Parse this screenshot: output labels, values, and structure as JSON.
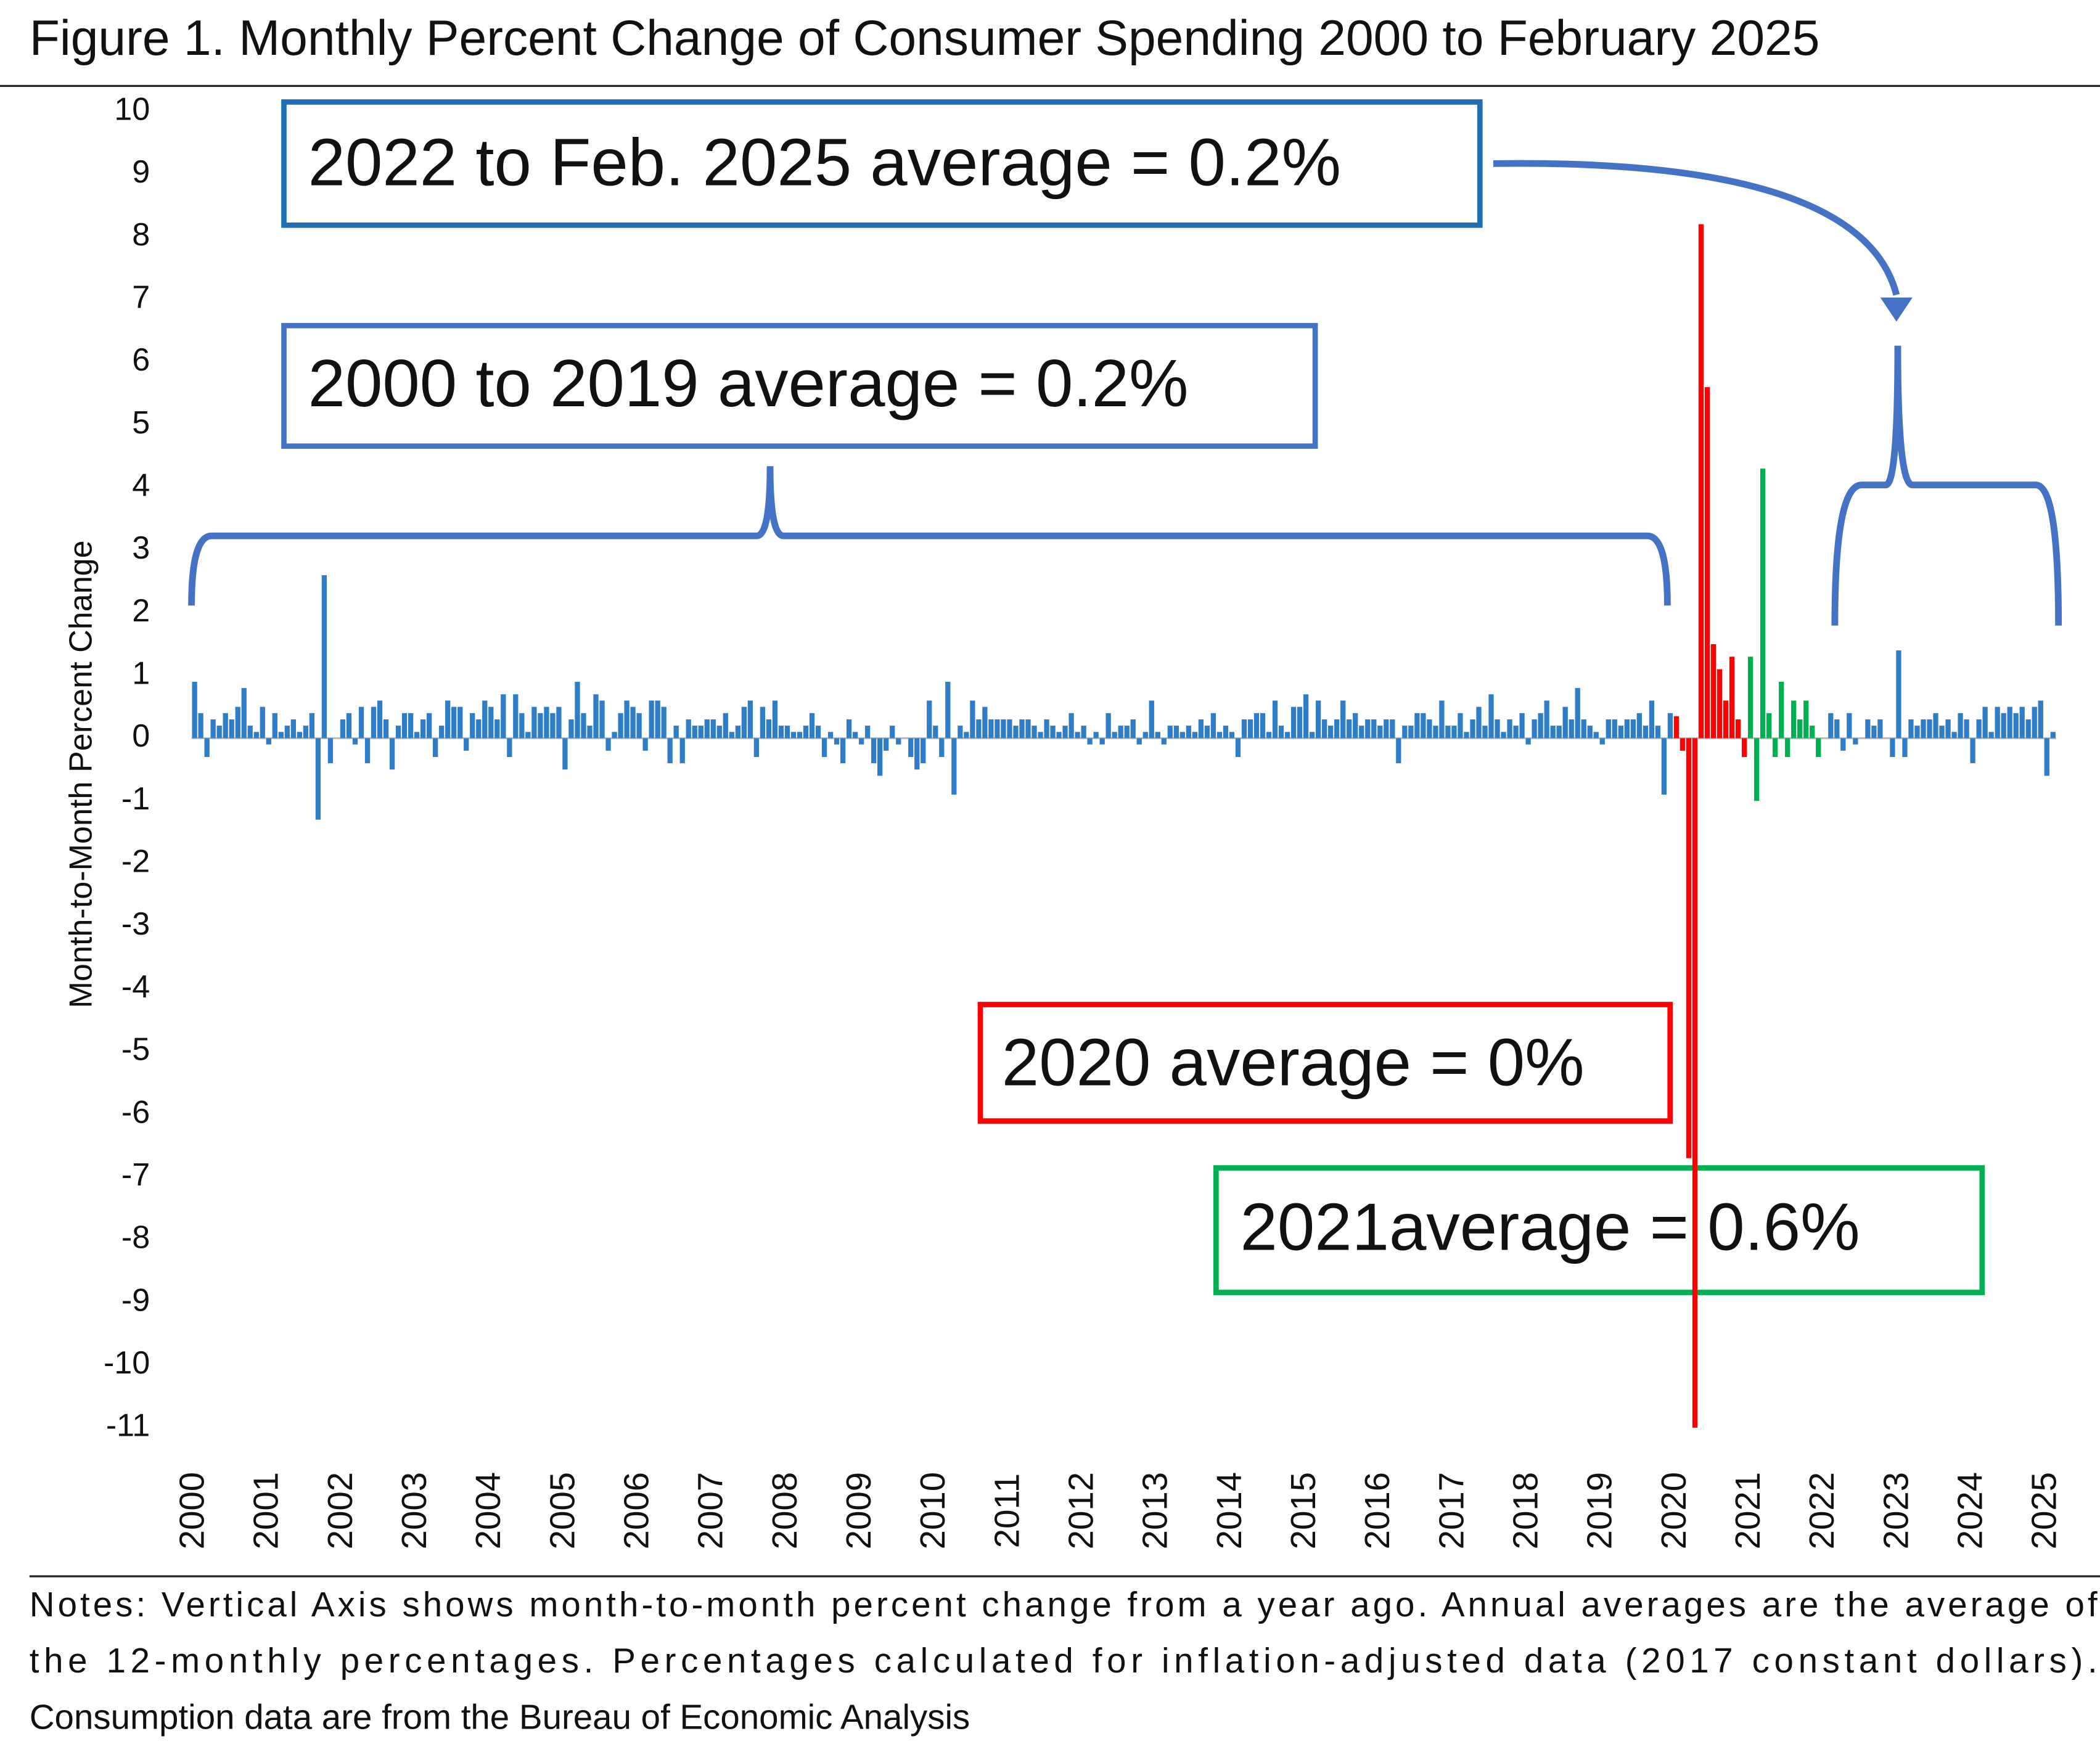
{
  "chart_data": {
    "type": "bar",
    "title": "Figure 1. Monthly Percent Change of Consumer Spending 2000 to February 2025",
    "y_label": "Month-to-Month Percent Change",
    "notes": [
      "Notes: Vertical Axis shows month-to-month percent change from a year ago. Annual averages are the average of",
      "the 12-monthly percentages.  Percentages calculated for inflation-adjusted data (2017 constant dollars).",
      "Consumption data are from the Bureau of Economic Analysis"
    ],
    "annotations": [
      {
        "text": "2022 to Feb. 2025 average = 0.2%",
        "color": "#1f6fb5"
      },
      {
        "text": "2000 to 2019 average = 0.2%",
        "color": "#4472c4"
      },
      {
        "text": "2020 average = 0%",
        "color": "#ff0000"
      },
      {
        "text": "2021average = 0.6%",
        "color": "#00b050"
      }
    ],
    "ylim": [
      -11,
      10
    ],
    "yticks": [
      -11,
      -10,
      -9,
      -8,
      -7,
      -6,
      -5,
      -4,
      -3,
      -2,
      -1,
      0,
      1,
      2,
      3,
      4,
      5,
      6,
      7,
      8,
      9,
      10
    ],
    "categories": [
      "2000",
      null,
      null,
      null,
      null,
      null,
      null,
      null,
      null,
      null,
      null,
      null,
      "2001",
      null,
      null,
      null,
      null,
      null,
      null,
      null,
      null,
      null,
      null,
      null,
      "2002",
      null,
      null,
      null,
      null,
      null,
      null,
      null,
      null,
      null,
      null,
      null,
      "2003",
      null,
      null,
      null,
      null,
      null,
      null,
      null,
      null,
      null,
      null,
      null,
      "2004",
      null,
      null,
      null,
      null,
      null,
      null,
      null,
      null,
      null,
      null,
      null,
      "2005",
      null,
      null,
      null,
      null,
      null,
      null,
      null,
      null,
      null,
      null,
      null,
      "2006",
      null,
      null,
      null,
      null,
      null,
      null,
      null,
      null,
      null,
      null,
      null,
      "2007",
      null,
      null,
      null,
      null,
      null,
      null,
      null,
      null,
      null,
      null,
      null,
      "2008",
      null,
      null,
      null,
      null,
      null,
      null,
      null,
      null,
      null,
      null,
      null,
      "2009",
      null,
      null,
      null,
      null,
      null,
      null,
      null,
      null,
      null,
      null,
      null,
      "2010",
      null,
      null,
      null,
      null,
      null,
      null,
      null,
      null,
      null,
      null,
      null,
      "2011",
      null,
      null,
      null,
      null,
      null,
      null,
      null,
      null,
      null,
      null,
      null,
      "2012",
      null,
      null,
      null,
      null,
      null,
      null,
      null,
      null,
      null,
      null,
      null,
      "2013",
      null,
      null,
      null,
      null,
      null,
      null,
      null,
      null,
      null,
      null,
      null,
      "2014",
      null,
      null,
      null,
      null,
      null,
      null,
      null,
      null,
      null,
      null,
      null,
      "2015",
      null,
      null,
      null,
      null,
      null,
      null,
      null,
      null,
      null,
      null,
      null,
      "2016",
      null,
      null,
      null,
      null,
      null,
      null,
      null,
      null,
      null,
      null,
      null,
      "2017",
      null,
      null,
      null,
      null,
      null,
      null,
      null,
      null,
      null,
      null,
      null,
      "2018",
      null,
      null,
      null,
      null,
      null,
      null,
      null,
      null,
      null,
      null,
      null,
      "2019",
      null,
      null,
      null,
      null,
      null,
      null,
      null,
      null,
      null,
      null,
      null,
      "2020",
      null,
      null,
      null,
      null,
      null,
      null,
      null,
      null,
      null,
      null,
      null,
      "2021",
      null,
      null,
      null,
      null,
      null,
      null,
      null,
      null,
      null,
      null,
      null,
      "2022",
      null,
      null,
      null,
      null,
      null,
      null,
      null,
      null,
      null,
      null,
      null,
      "2023",
      null,
      null,
      null,
      null,
      null,
      null,
      null,
      null,
      null,
      null,
      null,
      "2024",
      null,
      null,
      null,
      null,
      null,
      null,
      null,
      null,
      null,
      null,
      null,
      "2025",
      null
    ],
    "series": [
      {
        "color": "#2e7dc8",
        "values": [
          0.9,
          0.4,
          -0.3,
          0.3,
          0.2,
          0.4,
          0.3,
          0.5,
          0.8,
          0.2,
          0.1,
          0.5,
          -0.1,
          0.4,
          0.1,
          0.2,
          0.3,
          0.1,
          0.2,
          0.4,
          -1.3,
          2.6,
          -0.4,
          0.0,
          0.3,
          0.4,
          -0.1,
          0.5,
          -0.4,
          0.5,
          0.6,
          0.3,
          -0.5,
          0.2,
          0.4,
          0.4,
          0.1,
          0.3,
          0.4,
          -0.3,
          0.2,
          0.6,
          0.5,
          0.5,
          -0.2,
          0.4,
          0.3,
          0.6,
          0.5,
          0.3,
          0.7,
          -0.3,
          0.7,
          0.4,
          0.1,
          0.5,
          0.4,
          0.5,
          0.4,
          0.5,
          -0.5,
          0.3,
          0.9,
          0.4,
          0.2,
          0.7,
          0.6,
          -0.2,
          0.1,
          0.4,
          0.6,
          0.5,
          0.4,
          -0.2,
          0.6,
          0.6,
          0.5,
          -0.4,
          0.2,
          -0.4,
          0.3,
          0.2,
          0.2,
          0.3,
          0.3,
          0.2,
          0.4,
          0.1,
          0.2,
          0.5,
          0.6,
          -0.3,
          0.5,
          0.3,
          0.6,
          0.2,
          0.2,
          0.1,
          0.1,
          0.2,
          0.4,
          0.2,
          -0.3,
          0.1,
          -0.1,
          -0.4,
          0.3,
          0.1,
          -0.1,
          0.2,
          -0.4,
          -0.6,
          -0.2,
          0.2,
          -0.1,
          0.0,
          -0.3,
          -0.5,
          -0.4,
          0.6,
          0.2,
          -0.3,
          0.9,
          -0.9,
          0.2,
          0.1,
          0.6,
          0.3,
          0.5,
          0.3,
          0.3,
          0.3,
          0.3,
          0.2,
          0.3,
          0.3,
          0.2,
          0.1,
          0.3,
          0.2,
          0.1,
          0.2,
          0.4,
          0.1,
          0.2,
          -0.1,
          0.1,
          -0.1,
          0.4,
          0.1,
          0.2,
          0.2,
          0.3,
          -0.1,
          0.1,
          0.6,
          0.1,
          -0.1,
          0.2,
          0.2,
          0.1,
          0.2,
          0.1,
          0.3,
          0.2,
          0.4,
          0.1,
          0.2,
          0.1,
          -0.3,
          0.3,
          0.3,
          0.4,
          0.4,
          0.1,
          0.6,
          0.2,
          0.1,
          0.5,
          0.5,
          0.7,
          0.1,
          0.6,
          0.3,
          0.2,
          0.3,
          0.6,
          0.3,
          0.4,
          0.2,
          0.3,
          0.3,
          0.2,
          0.3,
          0.3,
          -0.4,
          0.2,
          0.2,
          0.4,
          0.4,
          0.3,
          0.2,
          0.6,
          0.2,
          0.2,
          0.4,
          0.1,
          0.3,
          0.5,
          0.2,
          0.7,
          0.3,
          0.1,
          0.3,
          0.2,
          0.4,
          -0.1,
          0.3,
          0.4,
          0.6,
          0.2,
          0.2,
          0.5,
          0.3,
          0.8,
          0.3,
          0.2,
          0.1,
          -0.1,
          0.3,
          0.3,
          0.2,
          0.3,
          0.3,
          0.4,
          0.2,
          0.6,
          0.2,
          -0.9,
          0.4,
          null,
          null,
          null,
          null,
          null,
          null,
          null,
          null,
          null,
          null,
          null,
          null,
          null,
          null,
          null,
          null,
          null,
          null,
          null,
          null,
          null,
          null,
          null,
          null,
          0.0,
          0.4,
          0.3,
          -0.2,
          0.4,
          -0.1,
          0.0,
          0.3,
          0.2,
          0.3,
          0.0,
          -0.3,
          1.4,
          -0.3,
          0.3,
          0.2,
          0.3,
          0.3,
          0.4,
          0.2,
          0.3,
          0.1,
          0.4,
          0.3,
          -0.4,
          0.3,
          0.5,
          0.1,
          0.5,
          0.4,
          0.5,
          0.4,
          0.5,
          0.3,
          0.5,
          0.6,
          -0.6,
          0.1
        ]
      },
      {
        "color": "#ff0000",
        "values": [
          null,
          null,
          null,
          null,
          null,
          null,
          null,
          null,
          null,
          null,
          null,
          null,
          null,
          null,
          null,
          null,
          null,
          null,
          null,
          null,
          null,
          null,
          null,
          null,
          null,
          null,
          null,
          null,
          null,
          null,
          null,
          null,
          null,
          null,
          null,
          null,
          null,
          null,
          null,
          null,
          null,
          null,
          null,
          null,
          null,
          null,
          null,
          null,
          null,
          null,
          null,
          null,
          null,
          null,
          null,
          null,
          null,
          null,
          null,
          null,
          null,
          null,
          null,
          null,
          null,
          null,
          null,
          null,
          null,
          null,
          null,
          null,
          null,
          null,
          null,
          null,
          null,
          null,
          null,
          null,
          null,
          null,
          null,
          null,
          null,
          null,
          null,
          null,
          null,
          null,
          null,
          null,
          null,
          null,
          null,
          null,
          null,
          null,
          null,
          null,
          null,
          null,
          null,
          null,
          null,
          null,
          null,
          null,
          null,
          null,
          null,
          null,
          null,
          null,
          null,
          null,
          null,
          null,
          null,
          null,
          null,
          null,
          null,
          null,
          null,
          null,
          null,
          null,
          null,
          null,
          null,
          null,
          null,
          null,
          null,
          null,
          null,
          null,
          null,
          null,
          null,
          null,
          null,
          null,
          null,
          null,
          null,
          null,
          null,
          null,
          null,
          null,
          null,
          null,
          null,
          null,
          null,
          null,
          null,
          null,
          null,
          null,
          null,
          null,
          null,
          null,
          null,
          null,
          null,
          null,
          null,
          null,
          null,
          null,
          null,
          null,
          null,
          null,
          null,
          null,
          null,
          null,
          null,
          null,
          null,
          null,
          null,
          null,
          null,
          null,
          null,
          null,
          null,
          null,
          null,
          null,
          null,
          null,
          null,
          null,
          null,
          null,
          null,
          null,
          null,
          null,
          null,
          null,
          null,
          null,
          null,
          null,
          null,
          null,
          null,
          null,
          null,
          null,
          null,
          null,
          null,
          null,
          null,
          null,
          null,
          null,
          null,
          null,
          null,
          null,
          null,
          null,
          null,
          null,
          null,
          null,
          null,
          null,
          null,
          null,
          0.35,
          -0.2,
          -6.7,
          -11.0,
          8.2,
          5.6,
          1.5,
          1.1,
          0.6,
          1.3,
          0.3,
          -0.3,
          null,
          null,
          null,
          null,
          null,
          null,
          null,
          null,
          null,
          null,
          null,
          null,
          null,
          null,
          null,
          null,
          null,
          null,
          null,
          null,
          null,
          null,
          null,
          null,
          null,
          null,
          null,
          null,
          null,
          null,
          null,
          null,
          null,
          null,
          null,
          null,
          null,
          null,
          null,
          null,
          null,
          null,
          null,
          null,
          null,
          null,
          null,
          null,
          null,
          null
        ]
      },
      {
        "color": "#00b050",
        "values": [
          null,
          null,
          null,
          null,
          null,
          null,
          null,
          null,
          null,
          null,
          null,
          null,
          null,
          null,
          null,
          null,
          null,
          null,
          null,
          null,
          null,
          null,
          null,
          null,
          null,
          null,
          null,
          null,
          null,
          null,
          null,
          null,
          null,
          null,
          null,
          null,
          null,
          null,
          null,
          null,
          null,
          null,
          null,
          null,
          null,
          null,
          null,
          null,
          null,
          null,
          null,
          null,
          null,
          null,
          null,
          null,
          null,
          null,
          null,
          null,
          null,
          null,
          null,
          null,
          null,
          null,
          null,
          null,
          null,
          null,
          null,
          null,
          null,
          null,
          null,
          null,
          null,
          null,
          null,
          null,
          null,
          null,
          null,
          null,
          null,
          null,
          null,
          null,
          null,
          null,
          null,
          null,
          null,
          null,
          null,
          null,
          null,
          null,
          null,
          null,
          null,
          null,
          null,
          null,
          null,
          null,
          null,
          null,
          null,
          null,
          null,
          null,
          null,
          null,
          null,
          null,
          null,
          null,
          null,
          null,
          null,
          null,
          null,
          null,
          null,
          null,
          null,
          null,
          null,
          null,
          null,
          null,
          null,
          null,
          null,
          null,
          null,
          null,
          null,
          null,
          null,
          null,
          null,
          null,
          null,
          null,
          null,
          null,
          null,
          null,
          null,
          null,
          null,
          null,
          null,
          null,
          null,
          null,
          null,
          null,
          null,
          null,
          null,
          null,
          null,
          null,
          null,
          null,
          null,
          null,
          null,
          null,
          null,
          null,
          null,
          null,
          null,
          null,
          null,
          null,
          null,
          null,
          null,
          null,
          null,
          null,
          null,
          null,
          null,
          null,
          null,
          null,
          null,
          null,
          null,
          null,
          null,
          null,
          null,
          null,
          null,
          null,
          null,
          null,
          null,
          null,
          null,
          null,
          null,
          null,
          null,
          null,
          null,
          null,
          null,
          null,
          null,
          null,
          null,
          null,
          null,
          null,
          null,
          null,
          null,
          null,
          null,
          null,
          null,
          null,
          null,
          null,
          null,
          null,
          null,
          null,
          null,
          null,
          null,
          null,
          null,
          null,
          null,
          null,
          null,
          null,
          null,
          null,
          null,
          null,
          null,
          null,
          1.3,
          -1.0,
          4.3,
          0.4,
          -0.3,
          0.9,
          -0.3,
          0.6,
          0.3,
          0.6,
          0.2,
          -0.3,
          null,
          null,
          null,
          null,
          null,
          null,
          null,
          null,
          null,
          null,
          null,
          null,
          null,
          null,
          null,
          null,
          null,
          null,
          null,
          null,
          null,
          null,
          null,
          null,
          null,
          null,
          null,
          null,
          null,
          null,
          null,
          null,
          null,
          null,
          null,
          null,
          null,
          null
        ]
      }
    ]
  }
}
